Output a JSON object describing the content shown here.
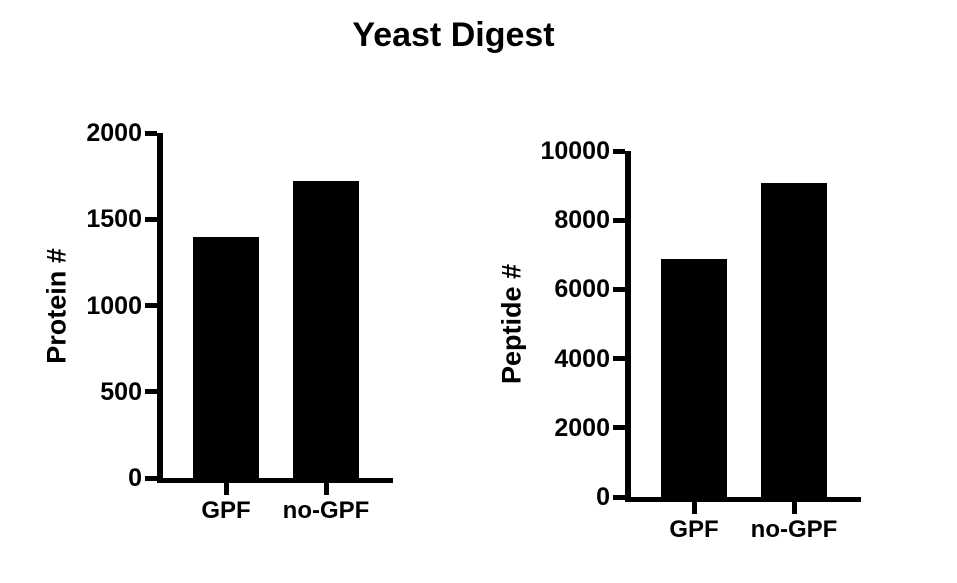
{
  "title": "Yeast Digest",
  "colors": {
    "bar": "#000000",
    "axis": "#000000",
    "text": "#000000",
    "background": "#ffffff"
  },
  "chart_data": [
    {
      "type": "bar",
      "title": "",
      "ylabel": "Protein #",
      "xlabel": "",
      "categories": [
        "GPF",
        "no-GPF"
      ],
      "values": [
        1400,
        1720
      ],
      "ylim": [
        0,
        2000
      ],
      "yticks": [
        0,
        500,
        1000,
        1500,
        2000
      ],
      "grid": false,
      "legend": "none",
      "bar_color": "#000000"
    },
    {
      "type": "bar",
      "title": "",
      "ylabel": "Peptide #",
      "xlabel": "",
      "categories": [
        "GPF",
        "no-GPF"
      ],
      "values": [
        6890,
        9090
      ],
      "ylim": [
        0,
        10000
      ],
      "yticks": [
        0,
        2000,
        4000,
        6000,
        8000,
        10000
      ],
      "grid": false,
      "legend": "none",
      "bar_color": "#000000"
    }
  ]
}
